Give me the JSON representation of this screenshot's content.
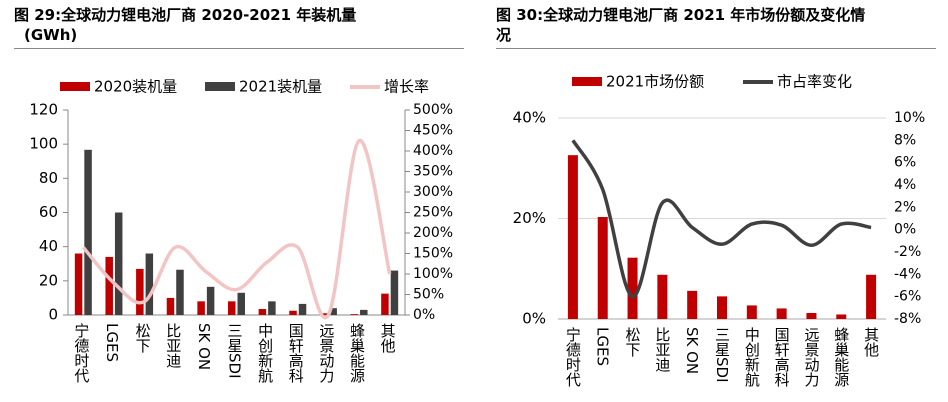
{
  "figures": [
    {
      "title_line1": "图 29:全球动力锂电池厂商 2020-2021 年装机量",
      "title_line2": "(GWh)"
    },
    {
      "title_line1": "图 30:全球动力锂电池厂商 2021 年市场份额及变化情",
      "title_line2": "况"
    }
  ],
  "chart_data": [
    {
      "type": "bar",
      "categories": [
        "宁德时代",
        "LGES",
        "松下",
        "比亚迪",
        "SK ON",
        "三星SDI",
        "中创新航",
        "国轩高科",
        "远景动力",
        "蜂巢能源",
        "其他"
      ],
      "series": [
        {
          "name": "2020装机量",
          "axis": "left",
          "color": "#c00000",
          "values": [
            36,
            34,
            27,
            10,
            8,
            8,
            3.5,
            2.5,
            1.0,
            0.5,
            12.5
          ]
        },
        {
          "name": "2021装机量",
          "axis": "left",
          "color": "#404040",
          "values": [
            96.7,
            60,
            36,
            26.5,
            16.5,
            13,
            8,
            6.5,
            4,
            3,
            26
          ]
        },
        {
          "name": "增长率",
          "type": "line",
          "axis": "right",
          "color": "#f2c4c4",
          "values": [
            165,
            78,
            33,
            165,
            106,
            62,
            129,
            165,
            0,
            425,
            100
          ]
        }
      ],
      "ylim_left": [
        0,
        120
      ],
      "yticks_left": [
        "0",
        "20",
        "40",
        "60",
        "80",
        "100",
        "120"
      ],
      "ylim_right": [
        0,
        500
      ],
      "yticks_right": [
        "0%",
        "50%",
        "100%",
        "150%",
        "200%",
        "250%",
        "300%",
        "350%",
        "400%",
        "450%",
        "500%"
      ],
      "legend_position": "top",
      "grid": false
    },
    {
      "type": "bar",
      "categories": [
        "宁德时代",
        "LGES",
        "松下",
        "比亚迪",
        "SK ON",
        "三星SDI",
        "中创新航",
        "国轩高科",
        "远景动力",
        "蜂巢能源",
        "其他"
      ],
      "series": [
        {
          "name": "2021市场份额",
          "axis": "left",
          "color": "#c00000",
          "values": [
            32.6,
            20.3,
            12.2,
            8.8,
            5.6,
            4.5,
            2.7,
            2.1,
            1.2,
            0.9,
            8.8
          ]
        },
        {
          "name": "市占率变化",
          "type": "line",
          "axis": "right",
          "color": "#404040",
          "values": [
            8.0,
            3.6,
            -6.0,
            2.4,
            0.2,
            -1.3,
            0.5,
            0.4,
            -1.4,
            0.5,
            0.2
          ]
        }
      ],
      "ylim_left": [
        0,
        40
      ],
      "yticks_left": [
        "0%",
        "20%",
        "40%"
      ],
      "ylim_right": [
        -8,
        10
      ],
      "yticks_right": [
        "-8%",
        "-6%",
        "-4%",
        "-2%",
        "0%",
        "2%",
        "4%",
        "6%",
        "8%",
        "10%"
      ],
      "legend_position": "top",
      "grid": true
    }
  ]
}
